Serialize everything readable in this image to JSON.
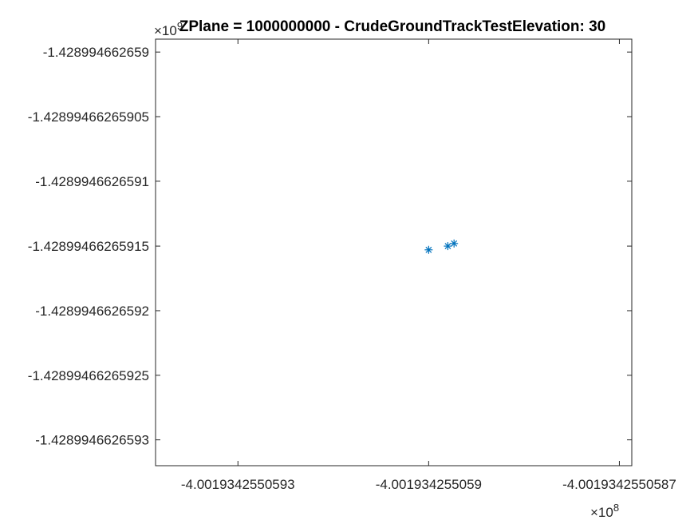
{
  "chart_data": {
    "type": "scatter",
    "title": "ZPlane = 1000000000 - CrudeGroundTrackTestElevation: 30",
    "xlabel": "",
    "ylabel": "",
    "x_multiplier": {
      "base": "×10",
      "exponent": "8"
    },
    "y_multiplier": {
      "base": "×10",
      "exponent": "9"
    },
    "x_tick_labels": [
      "-4.0019342550593",
      "-4.001934255059",
      "-4.0019342550587"
    ],
    "y_tick_labels": [
      "-1.428994662659",
      "-1.42899466265905",
      "-1.4289946626591",
      "-1.42899466265915",
      "-1.4289946626592",
      "-1.42899466265925",
      "-1.4289946626593"
    ],
    "xlim": [
      -4.00193425505943,
      -4.00193425505868
    ],
    "ylim": [
      -1.42899466265932,
      -1.42899466265899
    ],
    "x_ticks": [
      -4.0019342550593,
      -4.001934255059,
      -4.0019342550587
    ],
    "y_ticks": [
      -1.428994662659,
      -1.42899466265905,
      -1.4289946626591,
      -1.42899466265915,
      -1.4289946626592,
      -1.42899466265925,
      -1.4289946626593
    ],
    "series": [
      {
        "marker": "asterisk",
        "color": "#0072BD",
        "points": [
          {
            "x": -4.001934255059,
            "y": -1.428994662659153
          },
          {
            "x": -4.00193425505897,
            "y": -1.42899466265915
          },
          {
            "x": -4.00193425505896,
            "y": -1.428994662659148
          }
        ]
      }
    ],
    "grid": false,
    "box": true
  }
}
